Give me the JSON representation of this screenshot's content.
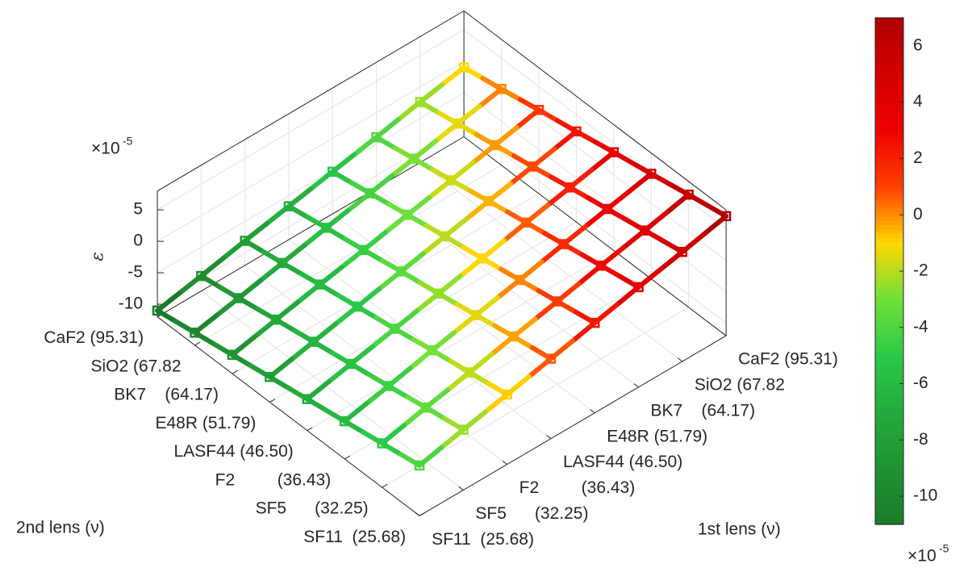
{
  "chart_data": {
    "type": "mesh3d",
    "x_label": "1st lens (ν)",
    "y_label": "2nd lens (ν)",
    "z_label": "ε",
    "z_multiplier": "×10",
    "z_multiplier_power": "-5",
    "x_categories": [
      "CaF2 (95.31)",
      "SiO2 (67.82",
      "BK7    (64.17)",
      "E48R (51.79)",
      "LASF44 (46.50)",
      "F2         (36.43)",
      "SF5      (32.25)",
      "SF11  (25.68)"
    ],
    "y_categories": [
      "CaF2 (95.31)",
      "SiO2 (67.82",
      "BK7    (64.17)",
      "E48R (51.79)",
      "LASF44 (46.50)",
      "F2         (36.43)",
      "SF5      (32.25)",
      "SF11  (25.68)"
    ],
    "z": [
      [
        -1.0,
        -2.4,
        -3.9,
        -5.3,
        -6.7,
        -8.1,
        -9.6,
        -11.0
      ],
      [
        0.1,
        -1.3,
        -2.8,
        -4.2,
        -5.6,
        -7.1,
        -8.6,
        -10.0
      ],
      [
        1.3,
        -0.2,
        -1.7,
        -3.1,
        -4.6,
        -6.0,
        -7.5,
        -9.0
      ],
      [
        2.4,
        0.9,
        -0.5,
        -2.0,
        -3.5,
        -5.0,
        -6.5,
        -8.0
      ],
      [
        3.6,
        2.1,
        0.6,
        -1.0,
        -2.5,
        -4.0,
        -5.5,
        -7.0
      ],
      [
        4.7,
        3.2,
        1.7,
        0.1,
        -1.4,
        -2.9,
        -4.5,
        -6.0
      ],
      [
        5.9,
        4.3,
        2.8,
        1.2,
        -0.3,
        -1.9,
        -3.4,
        -5.0
      ],
      [
        7.0,
        5.4,
        3.9,
        2.3,
        0.7,
        -0.9,
        -2.4,
        -4.0
      ]
    ],
    "zlim": [
      -12,
      8
    ],
    "zticks": [
      -10,
      -5,
      0,
      5
    ],
    "grid": true,
    "clim": [
      -11,
      7
    ],
    "cticks": [
      -10,
      -8,
      -6,
      -4,
      -2,
      0,
      2,
      4,
      6
    ],
    "colorbar_multiplier": "×10",
    "colorbar_multiplier_power": "-5",
    "colormap": [
      "#1a7a2a",
      "#1f9333",
      "#24ab3d",
      "#2bc948",
      "#6ee03a",
      "#ffd700",
      "#ff4000",
      "#f00000",
      "#d40000",
      "#b00000"
    ]
  }
}
